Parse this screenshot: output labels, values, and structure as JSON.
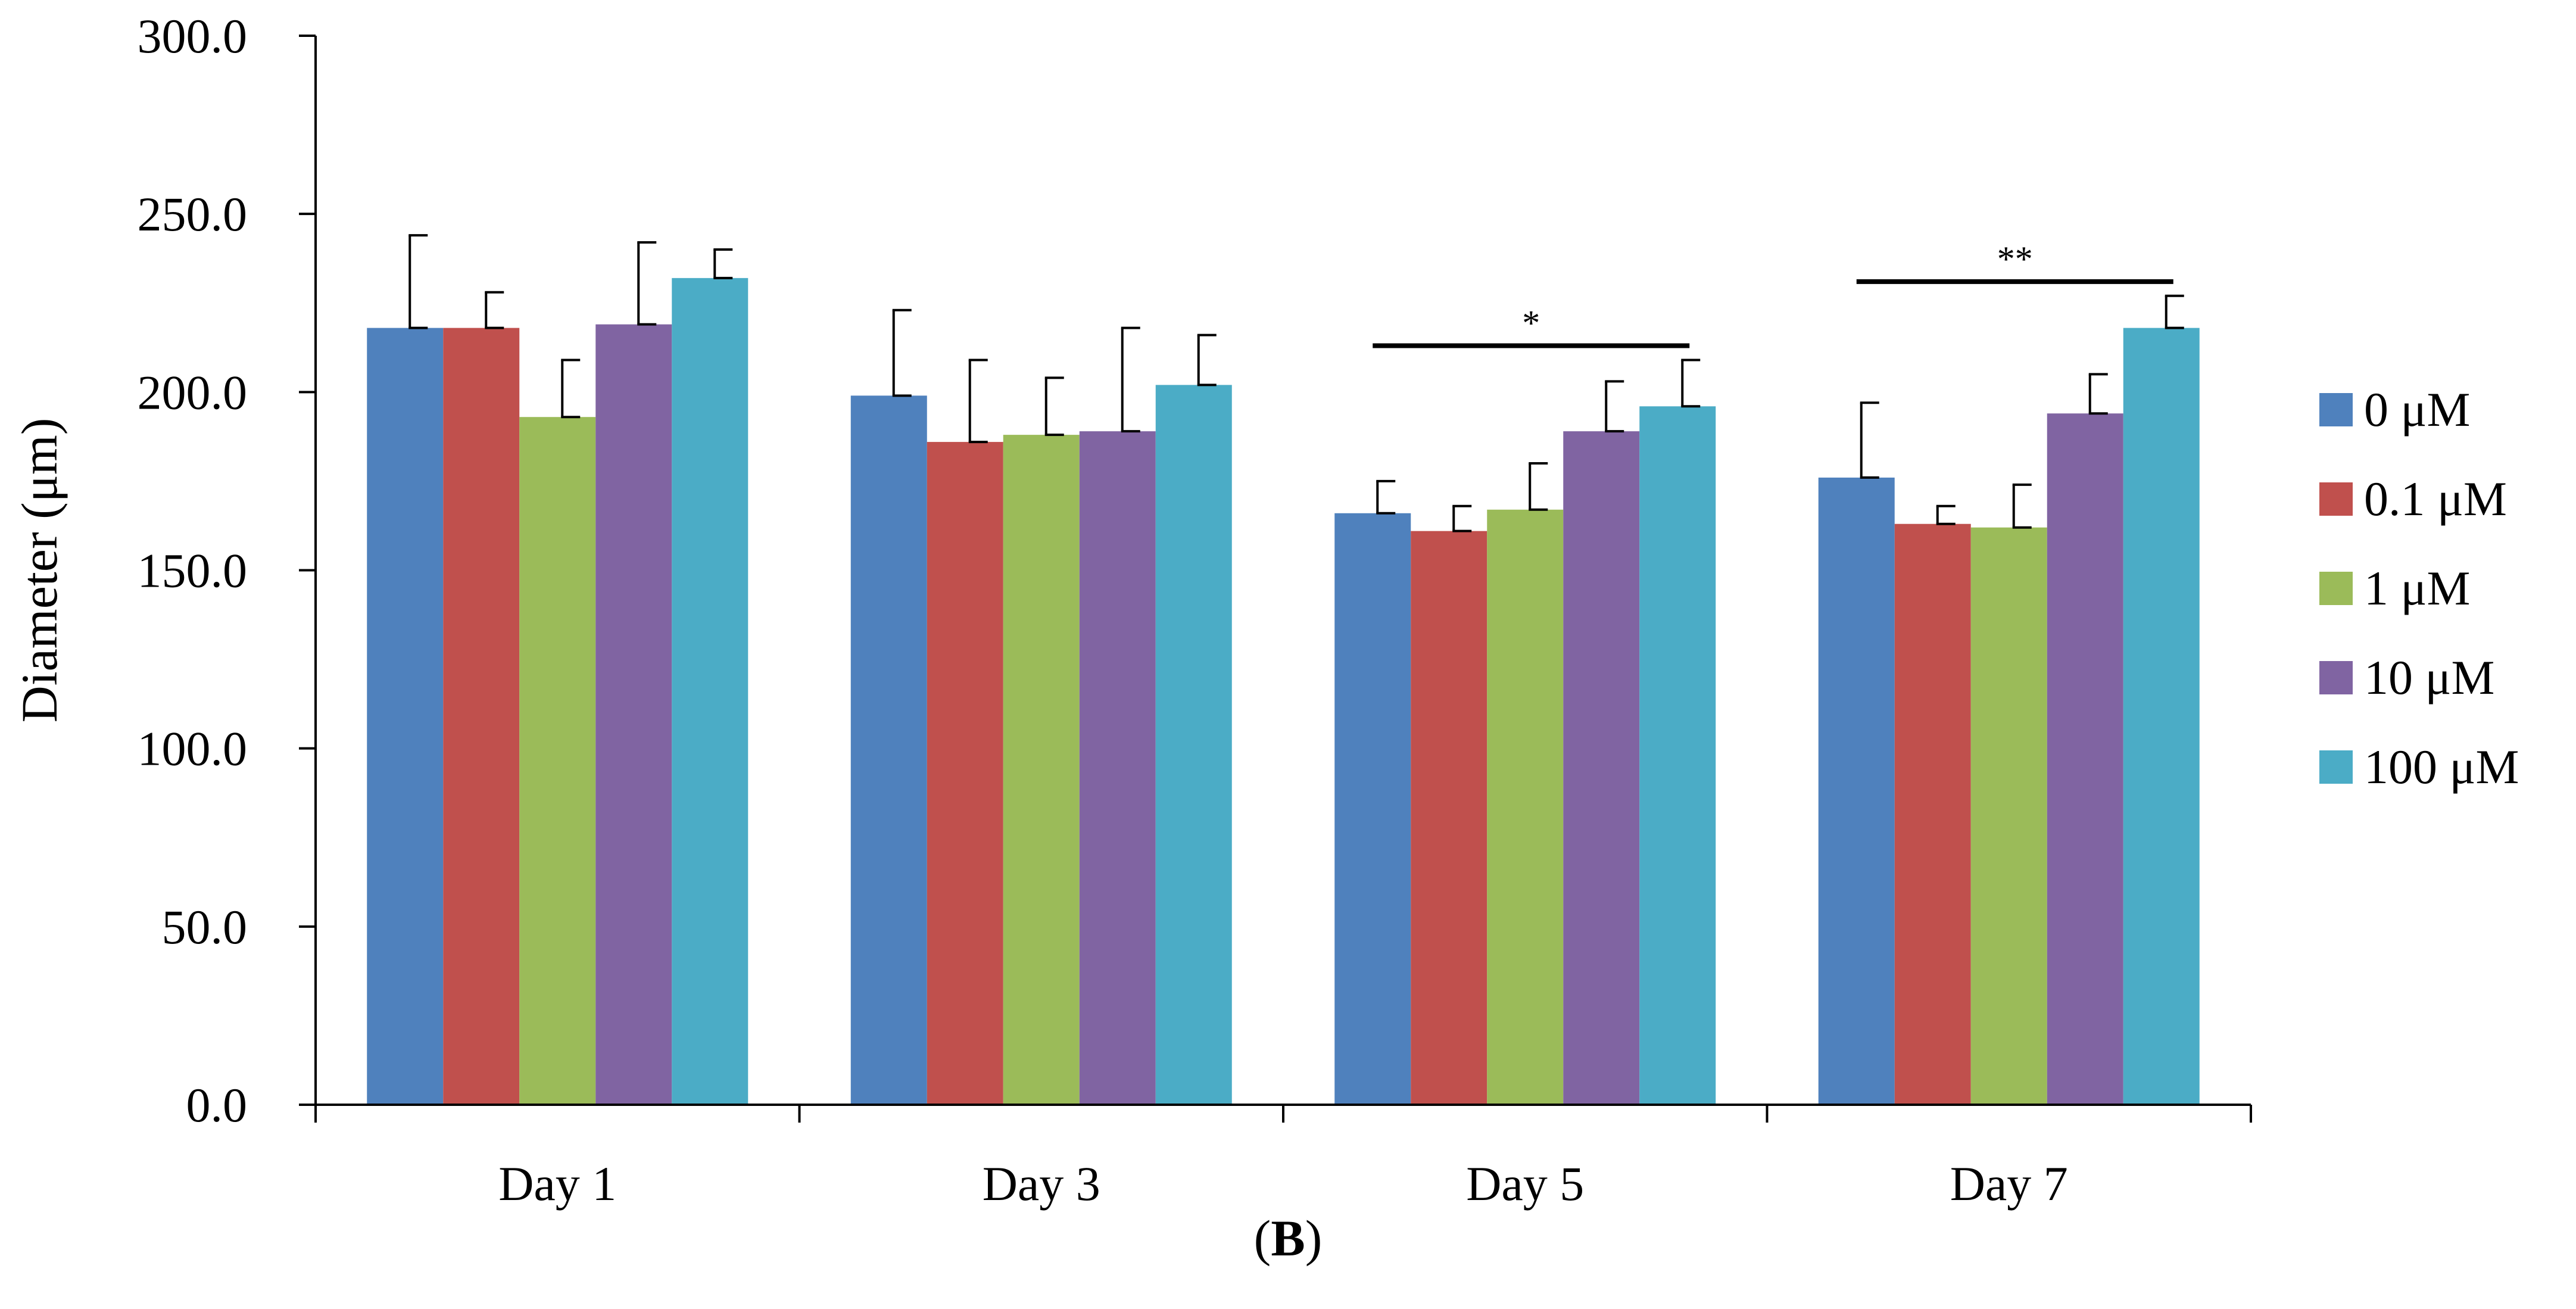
{
  "chart_data": {
    "type": "bar",
    "ylabel": "Diameter (μm)",
    "ylim": [
      0,
      300
    ],
    "yticks": [
      "0.0",
      "50.0",
      "100.0",
      "150.0",
      "200.0",
      "250.0",
      "300.0"
    ],
    "categories": [
      "Day 1",
      "Day 3",
      "Day 5",
      "Day 7"
    ],
    "series": [
      {
        "name": "0 μM",
        "color": "#4F81BD",
        "values": [
          218,
          199,
          166,
          176
        ],
        "errors": [
          26,
          24,
          9,
          21
        ]
      },
      {
        "name": "0.1 μM",
        "color": "#C0504D",
        "values": [
          218,
          186,
          161,
          163
        ],
        "errors": [
          10,
          23,
          7,
          5
        ]
      },
      {
        "name": "1 μM",
        "color": "#9BBB59",
        "values": [
          193,
          188,
          167,
          162
        ],
        "errors": [
          16,
          16,
          13,
          12
        ]
      },
      {
        "name": "10 μM",
        "color": "#8064A2",
        "values": [
          219,
          189,
          189,
          194
        ],
        "errors": [
          23,
          29,
          14,
          11
        ]
      },
      {
        "name": "100 μM",
        "color": "#4BACC6",
        "values": [
          232,
          202,
          196,
          218
        ],
        "errors": [
          8,
          14,
          13,
          9
        ]
      }
    ],
    "annotations": [
      {
        "text": "*",
        "category": "Day 5",
        "y": 213
      },
      {
        "text": "**",
        "category": "Day 7",
        "y": 231
      }
    ],
    "legend_position": "right",
    "grid": false
  },
  "panel_label": "B"
}
